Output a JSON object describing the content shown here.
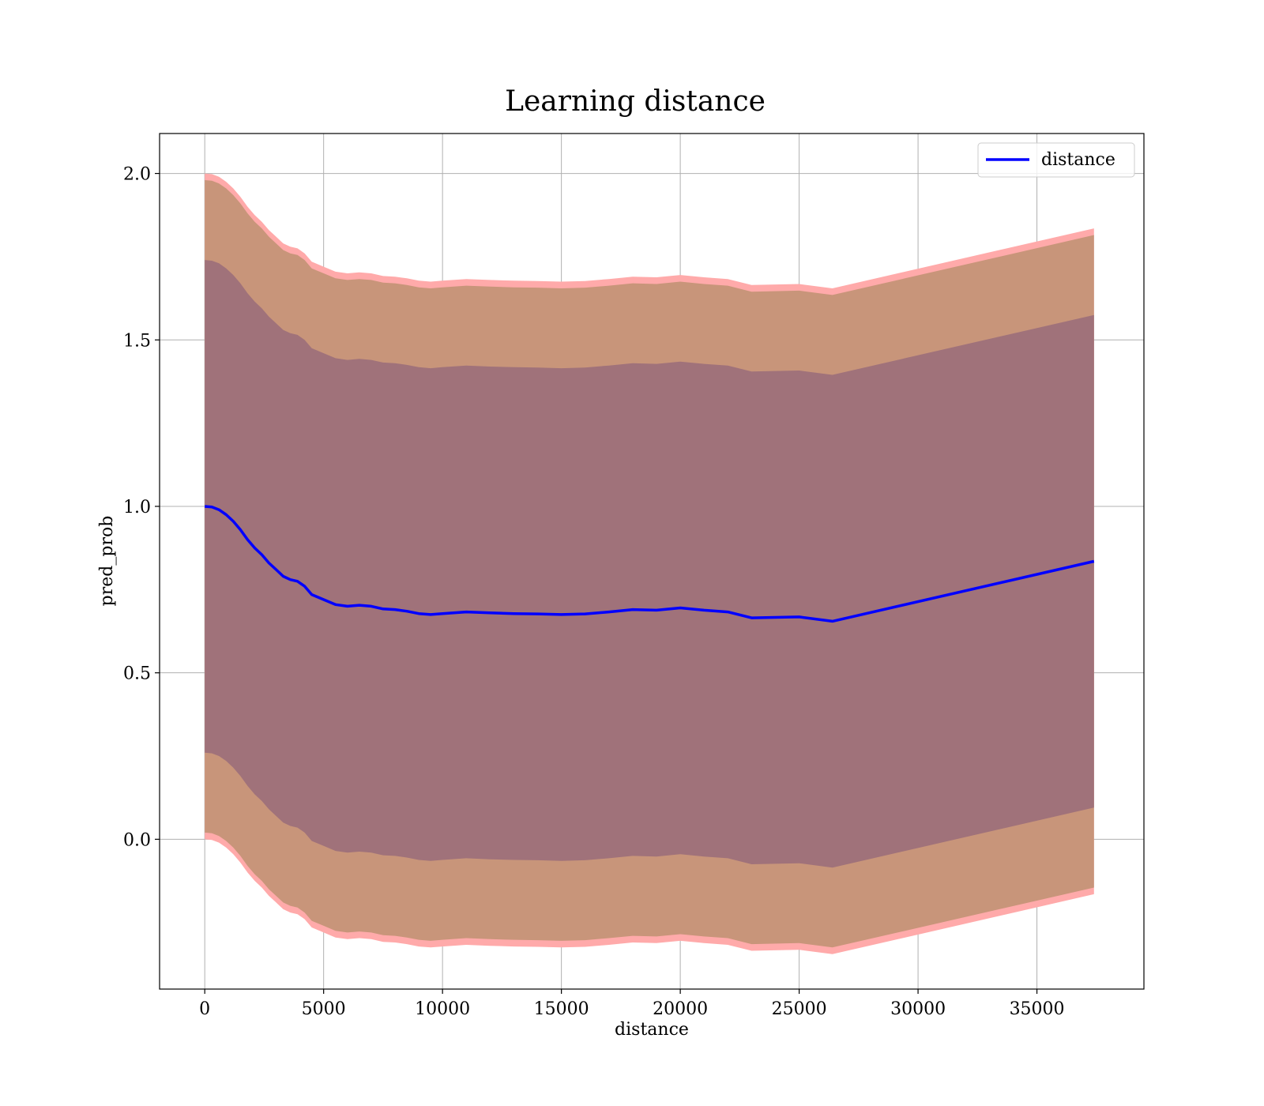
{
  "chart_data": {
    "type": "line",
    "title": "Learning distance",
    "xlabel": "distance",
    "ylabel": "pred_prob",
    "xlim": [
      -1900,
      39500
    ],
    "ylim": [
      -0.45,
      2.12
    ],
    "xticks": [
      0,
      5000,
      10000,
      15000,
      20000,
      25000,
      30000,
      35000
    ],
    "yticks": [
      0.0,
      0.5,
      1.0,
      1.5,
      2.0
    ],
    "xtick_labels": [
      "0",
      "5000",
      "10000",
      "15000",
      "20000",
      "25000",
      "30000",
      "35000"
    ],
    "ytick_labels": [
      "0.0",
      "0.5",
      "1.0",
      "1.5",
      "2.0"
    ],
    "grid": true,
    "legend": {
      "position": "top-right",
      "entries": [
        "distance"
      ]
    },
    "colors": {
      "line": "#0000ff",
      "band_outer": "#ffaaaa",
      "band_mid": "#c8957a",
      "band_inner": "#a0727a",
      "grid": "#b0b0b0"
    },
    "series": [
      {
        "name": "distance",
        "x": [
          0,
          300,
          600,
          900,
          1200,
          1500,
          1800,
          2100,
          2400,
          2700,
          3000,
          3300,
          3600,
          3900,
          4200,
          4500,
          5000,
          5500,
          6000,
          6500,
          7000,
          7500,
          8000,
          8500,
          9000,
          9500,
          10000,
          11000,
          12000,
          13000,
          14000,
          15000,
          16000,
          17000,
          18000,
          19000,
          20000,
          21000,
          22000,
          23000,
          25000,
          26400,
          37400
        ],
        "y": [
          1.0,
          0.998,
          0.99,
          0.975,
          0.955,
          0.93,
          0.9,
          0.875,
          0.855,
          0.83,
          0.81,
          0.79,
          0.78,
          0.775,
          0.76,
          0.735,
          0.72,
          0.705,
          0.7,
          0.703,
          0.7,
          0.692,
          0.69,
          0.685,
          0.678,
          0.675,
          0.678,
          0.683,
          0.68,
          0.678,
          0.677,
          0.675,
          0.677,
          0.683,
          0.69,
          0.688,
          0.695,
          0.688,
          0.683,
          0.665,
          0.668,
          0.655,
          0.835
        ]
      }
    ],
    "bands": [
      {
        "name": "outer",
        "upper_offset": 1.0,
        "lower_offset": -1.0
      },
      {
        "name": "mid",
        "upper_offset": 0.98,
        "lower_offset": -0.98
      },
      {
        "name": "inner",
        "upper_offset": 0.74,
        "lower_offset": -0.74
      }
    ]
  }
}
